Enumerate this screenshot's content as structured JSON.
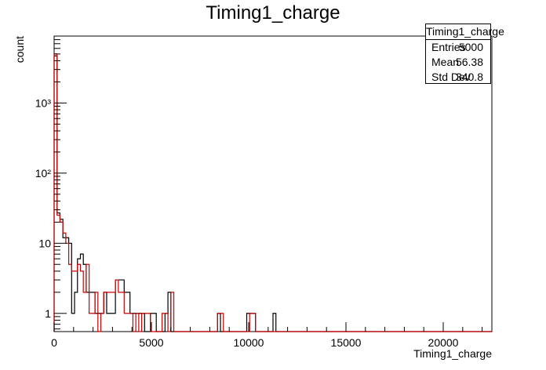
{
  "chart_data": {
    "type": "histogram",
    "title": "Timing1_charge",
    "xlabel": "Timing1_charge",
    "ylabel": "count",
    "y_scale": "log",
    "xlim": [
      0,
      22500
    ],
    "ylim": [
      0.55,
      9000
    ],
    "bin_width": 150,
    "x_ticks": [
      0,
      5000,
      10000,
      15000,
      20000
    ],
    "x_tick_labels": [
      "0",
      "5000",
      "10000",
      "15000",
      "20000"
    ],
    "y_ticks": [
      1,
      10,
      100,
      1000
    ],
    "y_tick_labels": [
      "1",
      "10",
      "10²",
      "10³"
    ],
    "grid": false,
    "series": [
      {
        "color": "#000000",
        "counts": {
          "0": 4700,
          "1": 27,
          "2": 22,
          "3": 12,
          "4": 12,
          "5": 10,
          "6": 1,
          "7": 2,
          "8": 6,
          "9": 7,
          "10": 5,
          "11": 2,
          "12": 2,
          "13": 2,
          "14": 1,
          "15": 1,
          "16": 1,
          "17": 2,
          "18": 1,
          "19": 1,
          "20": 1,
          "21": 3,
          "22": 3,
          "23": 3,
          "24": 2,
          "25": 2,
          "26": 1,
          "27": 1,
          "28": 1,
          "29": 1,
          "30": 1,
          "33": 1,
          "34": 1,
          "38": 1,
          "39": 2,
          "56": 1,
          "66": 1,
          "67": 1,
          "68": 1,
          "75": 1
        }
      },
      {
        "color": "#cc0000",
        "counts": {
          "0": 5000,
          "1": 25,
          "2": 20,
          "3": 14,
          "4": 10,
          "5": 5,
          "6": 4,
          "7": 4,
          "8": 5,
          "9": 4,
          "10": 2,
          "11": 5,
          "12": 1,
          "13": 1,
          "14": 2,
          "16": 1,
          "17": 2,
          "18": 2,
          "19": 2,
          "20": 2,
          "21": 3,
          "22": 2,
          "23": 2,
          "24": 1,
          "25": 1,
          "26": 1,
          "28": 1,
          "30": 1,
          "31": 1,
          "32": 1,
          "37": 1,
          "38": 1,
          "40": 2,
          "56": 1,
          "57": 1,
          "67": 1,
          "68": 1
        }
      }
    ]
  },
  "stats": {
    "title": "Timing1_charge",
    "rows": [
      {
        "label": "Entries",
        "value": "5000"
      },
      {
        "label": "Mean",
        "value": "56.38"
      },
      {
        "label": "Std Dev",
        "value": "340.8"
      }
    ]
  }
}
